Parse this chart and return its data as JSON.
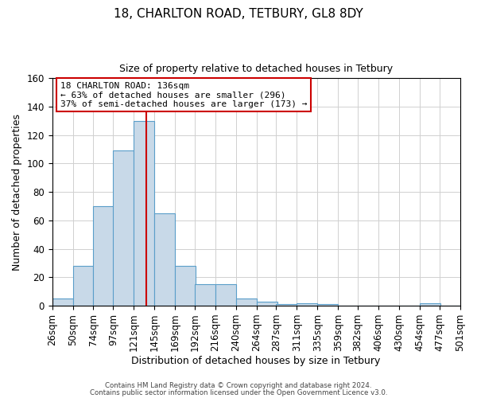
{
  "title_line1": "18, CHARLTON ROAD, TETBURY, GL8 8DY",
  "title_line2": "Size of property relative to detached houses in Tetbury",
  "xlabel": "Distribution of detached houses by size in Tetbury",
  "ylabel": "Number of detached properties",
  "bar_left_edges": [
    26,
    50,
    74,
    97,
    121,
    145,
    169,
    192,
    216,
    240,
    264,
    287,
    311,
    335,
    359,
    382,
    406,
    430,
    454,
    477
  ],
  "bar_heights": [
    5,
    28,
    70,
    109,
    130,
    65,
    28,
    15,
    15,
    5,
    3,
    1,
    2,
    1,
    0,
    0,
    0,
    0,
    2,
    0
  ],
  "bin_width": 24,
  "bar_color": "#c8d9e8",
  "bar_edge_color": "#5a9ec9",
  "vline_x": 136,
  "vline_color": "#cc0000",
  "ylim": [
    0,
    160
  ],
  "xlim": [
    26,
    501
  ],
  "x_tick_labels": [
    "26sqm",
    "50sqm",
    "74sqm",
    "97sqm",
    "121sqm",
    "145sqm",
    "169sqm",
    "192sqm",
    "216sqm",
    "240sqm",
    "264sqm",
    "287sqm",
    "311sqm",
    "335sqm",
    "359sqm",
    "382sqm",
    "406sqm",
    "430sqm",
    "454sqm",
    "477sqm",
    "501sqm"
  ],
  "x_tick_positions": [
    26,
    50,
    74,
    97,
    121,
    145,
    169,
    192,
    216,
    240,
    264,
    287,
    311,
    335,
    359,
    382,
    406,
    430,
    454,
    477,
    501
  ],
  "annotation_title": "18 CHARLTON ROAD: 136sqm",
  "annotation_line1": "← 63% of detached houses are smaller (296)",
  "annotation_line2": "37% of semi-detached houses are larger (173) →",
  "footer_line1": "Contains HM Land Registry data © Crown copyright and database right 2024.",
  "footer_line2": "Contains public sector information licensed under the Open Government Licence v3.0.",
  "grid_color": "#d0d0d0",
  "background_color": "#ffffff",
  "fig_width": 6.0,
  "fig_height": 5.0,
  "dpi": 100
}
